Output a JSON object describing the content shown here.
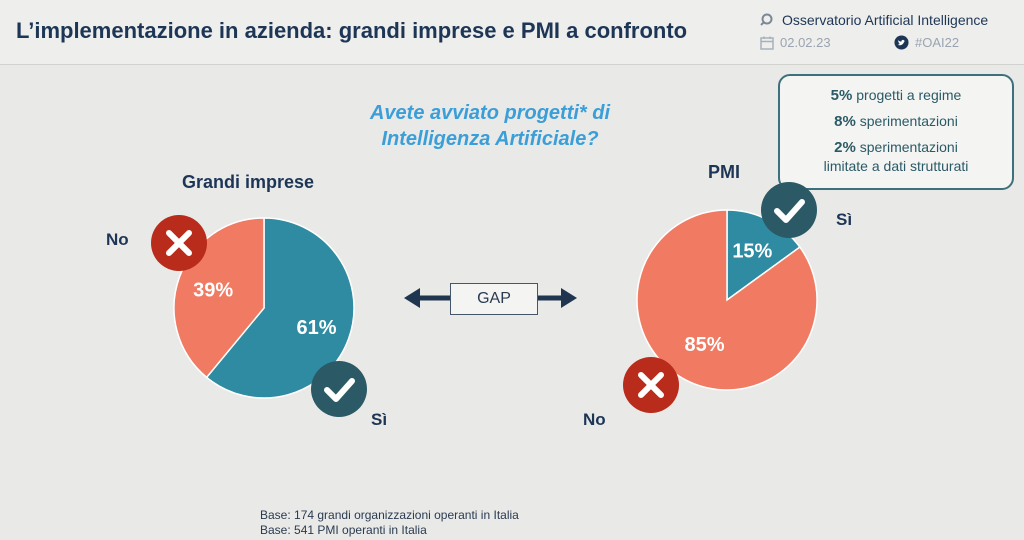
{
  "header": {
    "title": "L’implementazione in azienda: grandi imprese e PMI a confronto",
    "observatory": "Osservatorio Artificial Intelligence",
    "date": "02.02.23",
    "hashtag": "#OAI22"
  },
  "question": {
    "line1": "Avete avviato progetti* di",
    "line2": "Intelligenza Artificiale?"
  },
  "infobox": {
    "items": [
      {
        "value": "5%",
        "text": "progetti a regime"
      },
      {
        "value": "8%",
        "text": "sperimentazioni"
      },
      {
        "value": "2%",
        "text": "sperimentazioni",
        "text2": "limitate a dati strutturati"
      }
    ]
  },
  "gap_label": "GAP",
  "footnotes": {
    "base1": "Base: 174 grandi organizzazioni operanti in Italia",
    "base2": "Base: 541 PMI operanti in Italia"
  },
  "colors": {
    "si": "#2e8ba1",
    "no": "#f07a62",
    "check_badge": "#2b5965",
    "cross_badge": "#b92b1b"
  },
  "chart_data": [
    {
      "type": "pie",
      "title": "Grandi imprese",
      "slices": [
        {
          "label": "Sì",
          "value": 61,
          "display": "61%"
        },
        {
          "label": "No",
          "value": 39,
          "display": "39%"
        }
      ]
    },
    {
      "type": "pie",
      "title": "PMI",
      "slices": [
        {
          "label": "Sì",
          "value": 15,
          "display": "15%"
        },
        {
          "label": "No",
          "value": 85,
          "display": "85%"
        }
      ]
    }
  ]
}
